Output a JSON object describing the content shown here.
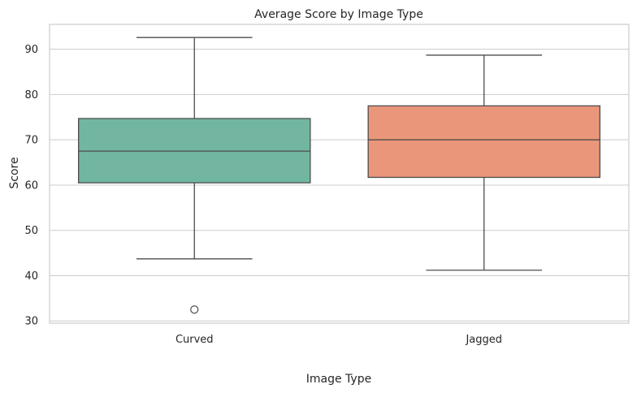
{
  "chart_data": {
    "type": "box",
    "title": "Average Score by Image Type",
    "xlabel": "Image Type",
    "ylabel": "Score",
    "ylim": [
      29.5,
      95.5
    ],
    "yticks": [
      30,
      40,
      50,
      60,
      70,
      80,
      90
    ],
    "grid": true,
    "categories": [
      "Curved",
      "Jagged"
    ],
    "boxes": [
      {
        "category": "Curved",
        "color": "#72b6a1",
        "whisker_low": 43.7,
        "q1": 60.5,
        "median": 67.5,
        "q3": 74.7,
        "whisker_high": 92.6,
        "outliers": [
          32.5
        ]
      },
      {
        "category": "Jagged",
        "color": "#e9967a",
        "whisker_low": 41.2,
        "q1": 61.7,
        "median": 70.0,
        "q3": 77.5,
        "whisker_high": 88.7,
        "outliers": []
      }
    ]
  }
}
